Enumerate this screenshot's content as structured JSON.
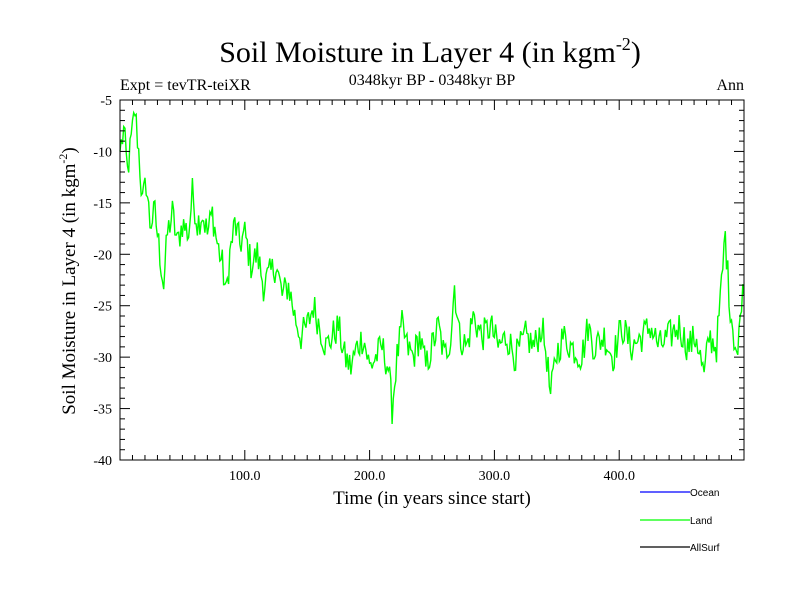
{
  "chart_data": {
    "type": "line",
    "title": "Soil Moisture in Layer 4 (in kgm",
    "title_sup": "-2",
    "title_close": ")",
    "subtitle": "0348kyr BP - 0348kyr BP",
    "left_label": "Expt = tevTR-teiXR",
    "right_label": "Ann",
    "xlabel": "Time (in years since start)",
    "ylabel": "Soil Moisture in Layer 4 (in kgm",
    "ylabel_sup": "-2",
    "ylabel_close": ")",
    "xlim": [
      0,
      500
    ],
    "ylim": [
      -40,
      -5
    ],
    "x_ticks": [
      100,
      200,
      300,
      400
    ],
    "x_tick_labels": [
      "100.0",
      "200.0",
      "300.0",
      "400.0"
    ],
    "y_ticks": [
      -5,
      -10,
      -15,
      -20,
      -25,
      -30,
      -35,
      -40
    ],
    "y_tick_labels": [
      "-5",
      "-10",
      "-15",
      "-20",
      "-25",
      "-30",
      "-35",
      "-40"
    ],
    "legend": [
      {
        "name": "Ocean",
        "color": "#0000ff"
      },
      {
        "name": "Land",
        "color": "#00ff00"
      },
      {
        "name": "AllSurf",
        "color": "#000000"
      }
    ],
    "series": [
      {
        "name": "Land",
        "color": "#00ff00",
        "anchors": [
          [
            0,
            -10
          ],
          [
            3,
            -8
          ],
          [
            6,
            -12
          ],
          [
            9,
            -9
          ],
          [
            12,
            -6
          ],
          [
            15,
            -10
          ],
          [
            18,
            -15
          ],
          [
            21,
            -13
          ],
          [
            24,
            -17
          ],
          [
            28,
            -16
          ],
          [
            32,
            -20
          ],
          [
            35,
            -23
          ],
          [
            38,
            -18
          ],
          [
            42,
            -16
          ],
          [
            46,
            -19
          ],
          [
            50,
            -17
          ],
          [
            55,
            -18
          ],
          [
            58,
            -14
          ],
          [
            62,
            -17
          ],
          [
            66,
            -16
          ],
          [
            70,
            -18
          ],
          [
            74,
            -16
          ],
          [
            78,
            -19
          ],
          [
            82,
            -21
          ],
          [
            85,
            -24
          ],
          [
            88,
            -20
          ],
          [
            92,
            -17
          ],
          [
            96,
            -19
          ],
          [
            100,
            -18
          ],
          [
            105,
            -21
          ],
          [
            110,
            -20
          ],
          [
            115,
            -23
          ],
          [
            120,
            -22
          ],
          [
            125,
            -21
          ],
          [
            130,
            -24
          ],
          [
            135,
            -23
          ],
          [
            140,
            -26
          ],
          [
            145,
            -28
          ],
          [
            150,
            -27
          ],
          [
            155,
            -25
          ],
          [
            160,
            -27
          ],
          [
            165,
            -29
          ],
          [
            170,
            -28
          ],
          [
            175,
            -27
          ],
          [
            180,
            -30
          ],
          [
            185,
            -31
          ],
          [
            190,
            -29
          ],
          [
            195,
            -28
          ],
          [
            200,
            -31
          ],
          [
            205,
            -30
          ],
          [
            210,
            -29
          ],
          [
            215,
            -31
          ],
          [
            218,
            -35
          ],
          [
            222,
            -30
          ],
          [
            226,
            -27
          ],
          [
            230,
            -29
          ],
          [
            235,
            -30
          ],
          [
            240,
            -28
          ],
          [
            245,
            -31
          ],
          [
            250,
            -29
          ],
          [
            255,
            -27
          ],
          [
            260,
            -30
          ],
          [
            265,
            -28
          ],
          [
            268,
            -23
          ],
          [
            272,
            -28
          ],
          [
            278,
            -29
          ],
          [
            283,
            -26
          ],
          [
            290,
            -28
          ],
          [
            297,
            -27
          ],
          [
            303,
            -29
          ],
          [
            310,
            -28
          ],
          [
            317,
            -30
          ],
          [
            325,
            -28
          ],
          [
            332,
            -29
          ],
          [
            338,
            -27
          ],
          [
            342,
            -30
          ],
          [
            345,
            -34
          ],
          [
            349,
            -30
          ],
          [
            355,
            -28
          ],
          [
            362,
            -29
          ],
          [
            370,
            -30
          ],
          [
            375,
            -27
          ],
          [
            380,
            -29
          ],
          [
            388,
            -28
          ],
          [
            395,
            -30
          ],
          [
            402,
            -27
          ],
          [
            410,
            -29
          ],
          [
            418,
            -28
          ],
          [
            425,
            -27
          ],
          [
            432,
            -29
          ],
          [
            440,
            -28
          ],
          [
            448,
            -27
          ],
          [
            455,
            -29
          ],
          [
            462,
            -28
          ],
          [
            468,
            -32
          ],
          [
            472,
            -28
          ],
          [
            478,
            -29
          ],
          [
            482,
            -23
          ],
          [
            485,
            -18
          ],
          [
            488,
            -24
          ],
          [
            492,
            -28
          ],
          [
            495,
            -30
          ],
          [
            498,
            -24
          ]
        ]
      }
    ]
  }
}
